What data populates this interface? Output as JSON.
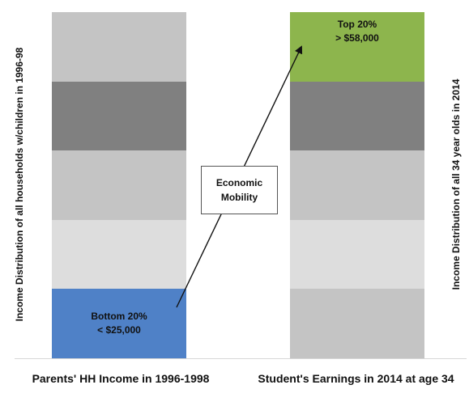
{
  "left_axis_title": "Income Distribution of all households  w/children in 1996-98",
  "right_axis_title": "Income Distribution of all 34 year olds in 2014",
  "columns": [
    {
      "label": "Parents' HH Income in 1996-1998",
      "highlighted_band": "bottom",
      "highlight_lines": [
        "Bottom 20%",
        "< $25,000"
      ],
      "highlight_color": "#4f81c7"
    },
    {
      "label": "Student's Earnings in 2014 at age 34",
      "highlighted_band": "top",
      "highlight_lines": [
        "Top 20%",
        "> $58,000"
      ],
      "highlight_color": "#8db54d"
    }
  ],
  "band_colors": [
    "#c4c4c4",
    "#808080",
    "#c4c4c4",
    "#dddddd",
    "#c4c4c4"
  ],
  "mobility_label_lines": [
    "Economic",
    "Mobility"
  ]
}
